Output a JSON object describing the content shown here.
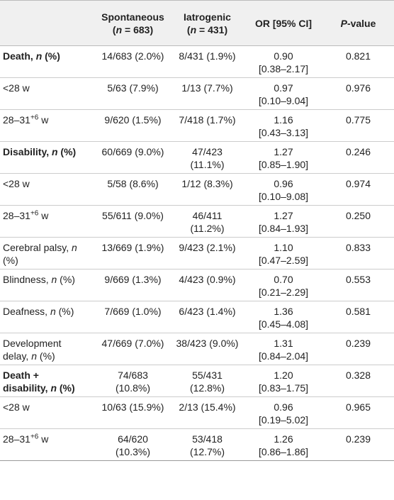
{
  "table": {
    "columns": [
      [
        "Spontaneous",
        [
          "(",
          {
            "text": "n",
            "style": "italic"
          },
          " = 683)"
        ]
      ],
      [
        "Iatrogenic",
        [
          "(",
          {
            "text": "n",
            "style": "italic"
          },
          " = 431)"
        ]
      ],
      "OR [95% CI]",
      [
        [
          {
            "text": "P",
            "style": "italic"
          },
          "-value"
        ]
      ]
    ],
    "rows": [
      {
        "bold": true,
        "cells": [
          [
            [
              "Death, ",
              {
                "text": "n",
                "style": "italic"
              },
              " (%)"
            ]
          ],
          "14/683 (2.0%)",
          "8/431 (1.9%)",
          [
            "0.90",
            "[0.38–2.17]"
          ],
          "0.821"
        ]
      },
      {
        "cells": [
          "<28 w",
          "5/63 (7.9%)",
          "1/13 (7.7%)",
          [
            "0.97",
            "[0.10–9.04]"
          ],
          "0.976"
        ]
      },
      {
        "cells": [
          [
            [
              "28–31",
              {
                "text": "+6",
                "style": "sup"
              },
              " w"
            ]
          ],
          "9/620 (1.5%)",
          "7/418 (1.7%)",
          [
            "1.16",
            "[0.43–3.13]"
          ],
          "0.775"
        ]
      },
      {
        "bold": true,
        "cells": [
          [
            [
              "Disability, ",
              {
                "text": "n",
                "style": "italic"
              },
              " (%)"
            ]
          ],
          "60/669 (9.0%)",
          [
            "47/423",
            "(11.1%)"
          ],
          [
            "1.27",
            "[0.85–1.90]"
          ],
          "0.246"
        ]
      },
      {
        "cells": [
          "<28 w",
          "5/58 (8.6%)",
          "1/12 (8.3%)",
          [
            "0.96",
            "[0.10–9.08]"
          ],
          "0.974"
        ]
      },
      {
        "cells": [
          [
            [
              "28–31",
              {
                "text": "+6",
                "style": "sup"
              },
              " w"
            ]
          ],
          "55/611 (9.0%)",
          [
            "46/411",
            "(11.2%)"
          ],
          [
            "1.27",
            "[0.84–1.93]"
          ],
          "0.250"
        ]
      },
      {
        "cells": [
          [
            [
              "Cerebral palsy, ",
              {
                "text": "n",
                "style": "italic"
              }
            ],
            "(%)"
          ],
          "13/669 (1.9%)",
          "9/423 (2.1%)",
          [
            "1.10",
            "[0.47–2.59]"
          ],
          "0.833"
        ]
      },
      {
        "cells": [
          [
            [
              "Blindness, ",
              {
                "text": "n",
                "style": "italic"
              },
              " (%)"
            ]
          ],
          "9/669 (1.3%)",
          "4/423 (0.9%)",
          [
            "0.70",
            "[0.21–2.29]"
          ],
          "0.553"
        ]
      },
      {
        "cells": [
          [
            [
              "Deafness, ",
              {
                "text": "n",
                "style": "italic"
              },
              " (%)"
            ]
          ],
          "7/669 (1.0%)",
          "6/423 (1.4%)",
          [
            "1.36",
            "[0.45–4.08]"
          ],
          "0.581"
        ]
      },
      {
        "cells": [
          [
            "Development",
            [
              "delay, ",
              {
                "text": "n",
                "style": "italic"
              },
              " (%)"
            ]
          ],
          "47/669 (7.0%)",
          "38/423 (9.0%)",
          [
            "1.31",
            "[0.84–2.04]"
          ],
          "0.239"
        ]
      },
      {
        "bold": true,
        "cells": [
          [
            "Death +",
            [
              "disability, ",
              {
                "text": "n",
                "style": "italic"
              },
              " (%)"
            ]
          ],
          [
            "74/683",
            "(10.8%)"
          ],
          [
            "55/431",
            "(12.8%)"
          ],
          [
            "1.20",
            "[0.83–1.75]"
          ],
          "0.328"
        ]
      },
      {
        "cells": [
          "<28 w",
          "10/63 (15.9%)",
          "2/13 (15.4%)",
          [
            "0.96",
            "[0.19–5.02]"
          ],
          "0.965"
        ]
      },
      {
        "cells": [
          [
            [
              "28–31",
              {
                "text": "+6",
                "style": "sup"
              },
              " w"
            ]
          ],
          [
            "64/620",
            "(10.3%)"
          ],
          [
            "53/418",
            "(12.7%)"
          ],
          [
            "1.26",
            "[0.86–1.86]"
          ],
          "0.239"
        ]
      }
    ]
  }
}
